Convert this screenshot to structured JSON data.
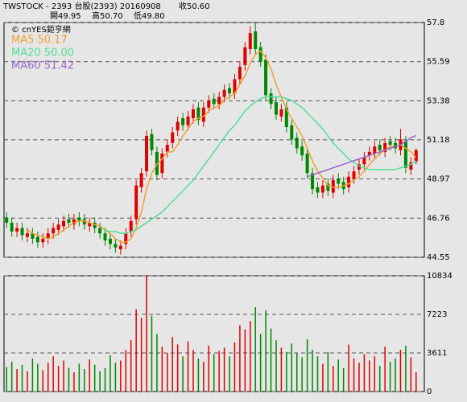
{
  "header": {
    "line1": "TWSTOCK  - 2393 台股(2393) 20160908",
    "close": "收50.60",
    "open": "開49.95",
    "high": "高50.70",
    "low": "低49.80"
  },
  "watermark": "© cnYES鉅亨網",
  "chart_data": [
    {
      "type": "candlestick",
      "open": [
        46.8,
        46.5,
        46.0,
        46.2,
        45.7,
        45.9,
        45.7,
        45.4,
        45.6,
        45.9,
        46.1,
        46.3,
        46.7,
        46.4,
        46.8,
        46.7,
        46.3,
        46.5,
        46.2,
        45.9,
        45.6,
        45.3,
        45.0,
        45.3,
        46.0,
        46.7,
        48.5,
        49.4,
        51.5,
        50.5,
        49.3,
        50.5,
        51.0,
        51.7,
        52.4,
        52.0,
        52.4,
        53.0,
        52.2,
        53.0,
        53.5,
        53.2,
        53.6,
        54.1,
        53.8,
        54.6,
        55.4,
        56.3,
        57.3,
        56.4,
        55.7,
        53.8,
        53.3,
        52.5,
        53.0,
        52.0,
        51.3,
        50.8,
        50.4,
        49.3,
        48.5,
        48.2,
        48.7,
        48.2,
        49.0,
        48.8,
        48.5,
        49.0,
        49.5,
        49.8,
        50.3,
        50.4,
        50.9,
        50.5,
        51.1,
        51.0,
        50.6,
        51.1,
        49.5,
        49.95
      ],
      "high": [
        47.1,
        46.8,
        46.5,
        46.5,
        46.2,
        46.2,
        46.0,
        45.9,
        46.2,
        46.5,
        46.7,
        46.9,
        47.0,
        47.0,
        47.1,
        47.0,
        46.8,
        46.8,
        46.5,
        46.2,
        45.9,
        45.6,
        45.5,
        46.2,
        46.9,
        48.9,
        49.6,
        51.7,
        51.8,
        50.8,
        50.7,
        51.2,
        51.9,
        52.5,
        52.7,
        52.8,
        53.2,
        53.3,
        53.3,
        53.7,
        53.8,
        53.9,
        54.3,
        54.4,
        54.9,
        55.6,
        56.7,
        57.6,
        57.8,
        56.7,
        56.0,
        54.1,
        53.6,
        53.2,
        53.3,
        52.3,
        51.6,
        51.1,
        50.7,
        49.6,
        48.8,
        48.9,
        49.0,
        49.2,
        49.3,
        49.1,
        49.4,
        49.7,
        50.1,
        50.5,
        50.8,
        51.1,
        51.2,
        51.3,
        51.4,
        51.3,
        51.8,
        51.4,
        50.2,
        50.7
      ],
      "low": [
        46.2,
        45.7,
        45.7,
        45.5,
        45.4,
        45.3,
        45.1,
        45.1,
        45.3,
        45.6,
        45.8,
        46.0,
        46.2,
        46.1,
        46.3,
        46.1,
        46.0,
        45.9,
        45.6,
        45.2,
        45.0,
        44.8,
        44.7,
        45.0,
        45.7,
        46.4,
        48.2,
        49.1,
        50.3,
        48.9,
        49.0,
        50.2,
        50.7,
        51.4,
        51.7,
        51.7,
        52.1,
        52.0,
        51.9,
        52.7,
        52.9,
        52.9,
        53.3,
        53.5,
        53.5,
        54.3,
        55.1,
        56.0,
        56.0,
        55.3,
        53.4,
        52.9,
        52.3,
        52.2,
        51.6,
        50.9,
        50.4,
        50.0,
        49.0,
        48.1,
        47.9,
        47.9,
        48.0,
        47.9,
        48.4,
        48.1,
        48.2,
        48.7,
        49.2,
        49.5,
        50.0,
        50.1,
        50.3,
        50.2,
        50.6,
        50.4,
        50.3,
        49.3,
        49.2,
        49.8
      ],
      "close": [
        46.5,
        46.0,
        46.2,
        45.8,
        45.9,
        45.6,
        45.4,
        45.6,
        45.9,
        46.2,
        46.4,
        46.6,
        46.5,
        46.7,
        46.6,
        46.4,
        46.5,
        46.2,
        45.9,
        45.5,
        45.3,
        45.1,
        45.2,
        45.9,
        46.6,
        48.6,
        49.3,
        51.4,
        50.6,
        49.2,
        50.4,
        50.9,
        51.6,
        52.2,
        52.0,
        52.5,
        52.9,
        52.3,
        53.0,
        53.4,
        53.2,
        53.6,
        54.0,
        53.8,
        54.6,
        55.3,
        56.4,
        57.2,
        56.3,
        55.6,
        53.7,
        53.2,
        52.6,
        52.9,
        51.9,
        51.2,
        50.7,
        50.3,
        49.3,
        48.4,
        48.2,
        48.6,
        48.3,
        48.9,
        48.7,
        48.4,
        49.1,
        49.4,
        49.8,
        50.2,
        50.5,
        50.8,
        50.6,
        51.0,
        50.9,
        50.7,
        51.2,
        49.6,
        49.9,
        50.6
      ],
      "up_color": "#e00000",
      "down_color": "#008800",
      "series": [
        {
          "name": "MA5 50.17",
          "color": "#f0a030",
          "values": [
            null,
            null,
            null,
            null,
            46.1,
            45.9,
            45.8,
            45.7,
            45.6,
            45.7,
            45.9,
            46.1,
            46.3,
            46.5,
            46.6,
            46.6,
            46.5,
            46.4,
            46.3,
            46.1,
            45.9,
            45.6,
            45.4,
            45.4,
            45.6,
            46.2,
            47.1,
            48.4,
            49.3,
            49.8,
            50.1,
            50.5,
            50.5,
            50.9,
            51.4,
            51.8,
            52.2,
            52.4,
            52.5,
            52.8,
            53.0,
            53.1,
            53.4,
            53.6,
            53.8,
            54.3,
            54.8,
            55.5,
            56.0,
            56.2,
            55.8,
            55.2,
            54.3,
            53.6,
            52.9,
            52.4,
            51.9,
            51.4,
            50.7,
            50.0,
            49.4,
            49.0,
            48.6,
            48.5,
            48.5,
            48.6,
            48.7,
            48.9,
            49.1,
            49.4,
            49.8,
            50.1,
            50.4,
            50.6,
            50.8,
            50.8,
            50.9,
            50.7,
            50.5,
            50.17
          ]
        },
        {
          "name": "MA20 50.00",
          "color": "#55dd99",
          "values": [
            null,
            null,
            null,
            null,
            null,
            null,
            null,
            null,
            null,
            null,
            null,
            null,
            null,
            null,
            null,
            null,
            null,
            null,
            null,
            46.1,
            46.0,
            46.0,
            45.9,
            45.9,
            46.0,
            46.1,
            46.3,
            46.5,
            46.7,
            46.9,
            47.1,
            47.4,
            47.7,
            48.0,
            48.3,
            48.6,
            48.9,
            49.3,
            49.7,
            50.1,
            50.5,
            50.9,
            51.3,
            51.7,
            52.0,
            52.4,
            52.8,
            53.1,
            53.3,
            53.5,
            53.6,
            53.6,
            53.6,
            53.6,
            53.5,
            53.4,
            53.2,
            53.0,
            52.7,
            52.4,
            52.1,
            51.8,
            51.4,
            51.0,
            50.7,
            50.4,
            50.1,
            49.9,
            49.7,
            49.6,
            49.5,
            49.5,
            49.5,
            49.5,
            49.5,
            49.5,
            49.6,
            49.7,
            49.8,
            50.0
          ]
        },
        {
          "name": "MA60 51.42",
          "color": "#9966cc",
          "values": [
            null,
            null,
            null,
            null,
            null,
            null,
            null,
            null,
            null,
            null,
            null,
            null,
            null,
            null,
            null,
            null,
            null,
            null,
            null,
            null,
            null,
            null,
            null,
            null,
            null,
            null,
            null,
            null,
            null,
            null,
            null,
            null,
            null,
            null,
            null,
            null,
            null,
            null,
            null,
            null,
            null,
            null,
            null,
            null,
            null,
            null,
            null,
            null,
            null,
            null,
            null,
            null,
            null,
            null,
            null,
            null,
            null,
            null,
            49.1,
            49.2,
            49.3,
            49.4,
            49.5,
            49.6,
            49.7,
            49.8,
            49.9,
            50.0,
            50.1,
            50.2,
            50.3,
            50.4,
            50.5,
            50.6,
            50.7,
            50.8,
            50.9,
            51.1,
            51.3,
            51.42
          ]
        }
      ],
      "ylim": [
        44.55,
        57.8
      ],
      "yticks": [
        44.55,
        46.76,
        48.97,
        51.18,
        53.38,
        55.59,
        57.8
      ],
      "grid": true
    },
    {
      "type": "bar",
      "values": [
        2300,
        2800,
        2100,
        2500,
        1900,
        3100,
        2600,
        2000,
        2700,
        3300,
        2400,
        2900,
        2200,
        1800,
        2600,
        2100,
        3000,
        2500,
        1900,
        2200,
        3400,
        2700,
        2900,
        3900,
        4800,
        7700,
        6900,
        10834,
        7100,
        5400,
        4200,
        3600,
        5100,
        4400,
        3300,
        4700,
        3900,
        3100,
        2800,
        4300,
        3500,
        3800,
        4100,
        3300,
        4600,
        6200,
        5800,
        6600,
        7900,
        5400,
        7600,
        5900,
        4800,
        4100,
        3700,
        4500,
        3600,
        3200,
        4900,
        3900,
        3300,
        2600,
        3700,
        2400,
        3000,
        2200,
        4400,
        3100,
        2700,
        3500,
        2900,
        3300,
        2400,
        4200,
        2800,
        3100,
        3900,
        4300,
        3200,
        1800
      ],
      "ylim": [
        0,
        10834
      ],
      "yticks": [
        0,
        3611,
        7223,
        10834
      ],
      "grid": true
    }
  ]
}
